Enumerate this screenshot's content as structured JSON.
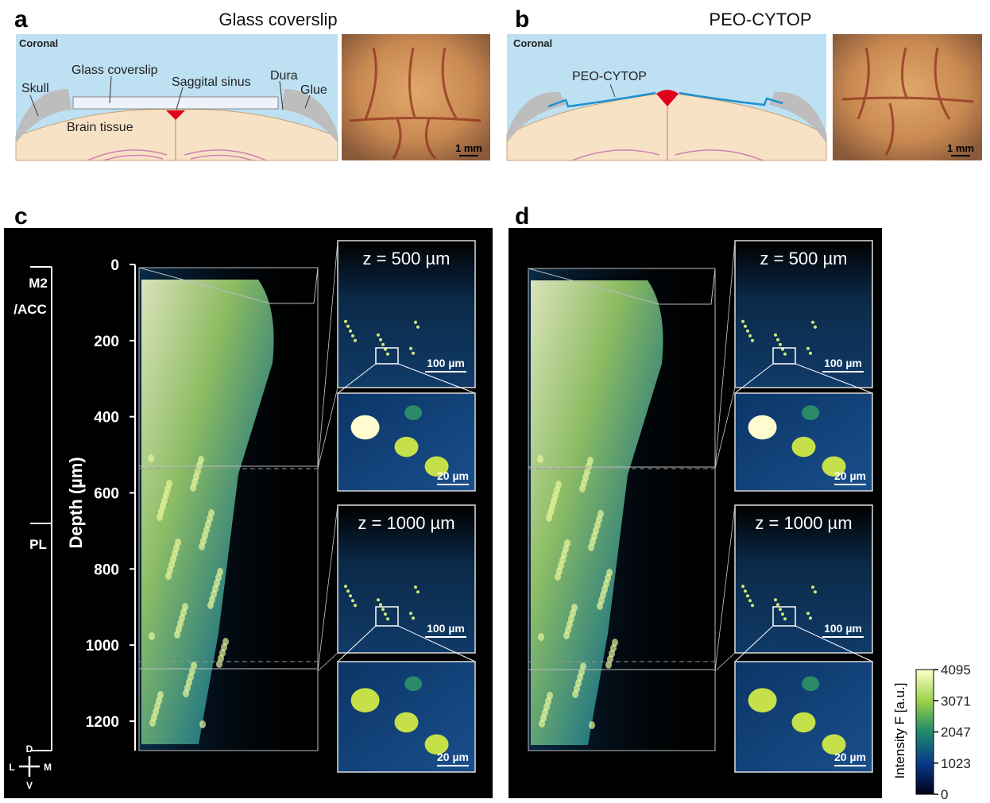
{
  "panel_a": {
    "label": "a",
    "title": "Glass coverslip",
    "schematic": {
      "view": "Coronal",
      "coverslip": "Glass coverslip",
      "sinus": "Saggital sinus",
      "dura": "Dura",
      "skull": "Skull",
      "glue": "Glue",
      "tissue": "Brain tissue"
    },
    "photo": {
      "scale_bar": "1 mm"
    }
  },
  "panel_b": {
    "label": "b",
    "title": "PEO-CYTOP",
    "schematic": {
      "view": "Coronal",
      "film": "PEO-CYTOP"
    },
    "photo": {
      "scale_bar": "1 mm"
    }
  },
  "panel_c": {
    "label": "c",
    "depth_axis": {
      "title": "Depth (µm)",
      "ticks": [
        0,
        200,
        400,
        600,
        800,
        1000,
        1200
      ]
    },
    "regions": {
      "upper_1": "M2",
      "upper_2": "/ACC",
      "lower": "PL"
    },
    "orientation": {
      "dorsal": "D",
      "ventral": "V",
      "lateral": "L",
      "medial": "M"
    },
    "insets": [
      {
        "title": "z = 500 µm",
        "scale_bar": "100 µm",
        "zoom_scale_bar": "20 µm"
      },
      {
        "title": "z = 1000 µm",
        "scale_bar": "100 µm",
        "zoom_scale_bar": "20 µm"
      }
    ]
  },
  "panel_d": {
    "label": "d",
    "insets": [
      {
        "title": "z = 500 µm",
        "scale_bar": "100 µm",
        "zoom_scale_bar": "20 µm"
      },
      {
        "title": "z = 1000 µm",
        "scale_bar": "100 µm",
        "zoom_scale_bar": "20 µm"
      }
    ],
    "colorbar": {
      "title": "Intensity F [a.u.]",
      "ticks": [
        0,
        1023,
        2047,
        3071,
        4095
      ]
    }
  }
}
